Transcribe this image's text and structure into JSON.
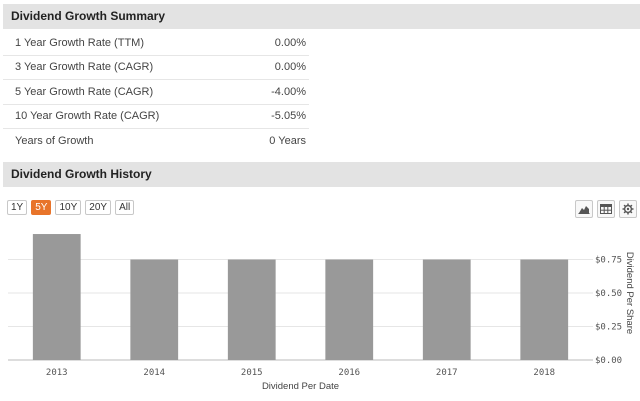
{
  "summary": {
    "title": "Dividend Growth Summary",
    "rows": [
      {
        "label": "1 Year Growth Rate (TTM)",
        "value": "0.00%"
      },
      {
        "label": "3 Year Growth Rate (CAGR)",
        "value": "0.00%"
      },
      {
        "label": "5 Year Growth Rate (CAGR)",
        "value": "-4.00%"
      },
      {
        "label": "10 Year Growth Rate (CAGR)",
        "value": "-5.05%"
      },
      {
        "label": "Years of Growth",
        "value": "0 Years"
      }
    ]
  },
  "history": {
    "title": "Dividend Growth History",
    "ranges": [
      {
        "label": "1Y",
        "active": false
      },
      {
        "label": "5Y",
        "active": true
      },
      {
        "label": "10Y",
        "active": false
      },
      {
        "label": "20Y",
        "active": false
      },
      {
        "label": "All",
        "active": false
      }
    ],
    "tools": [
      "area-chart-icon",
      "table-icon",
      "gear-icon"
    ]
  },
  "colors": {
    "bar": "#999999",
    "accent": "#e8742a",
    "header_bg": "#e3e3e3"
  },
  "chart_data": {
    "type": "bar",
    "categories": [
      "2013",
      "2014",
      "2015",
      "2016",
      "2017",
      "2018"
    ],
    "values": [
      0.94,
      0.75,
      0.75,
      0.75,
      0.75,
      0.75
    ],
    "xlabel": "Dividend Per Date",
    "ylabel": "Dividend Per Share",
    "ylim": [
      0,
      1.0
    ],
    "yticks": [
      0,
      0.25,
      0.5,
      0.75
    ],
    "ytick_labels": [
      "$0.00",
      "$0.25",
      "$0.50",
      "$0.75"
    ],
    "y_axis_side": "right",
    "grid": true
  }
}
